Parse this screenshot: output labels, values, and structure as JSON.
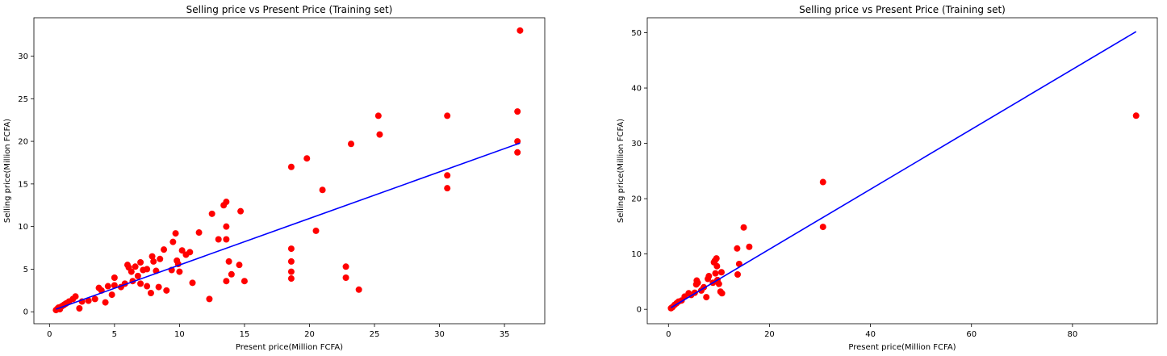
{
  "chart_data": [
    {
      "type": "scatter",
      "title": "Selling price vs Present Price (Training set)",
      "xlabel": "Present price(Million FCFA)",
      "ylabel": "Selling price(Million FCFA)",
      "xlim": [
        -1.2,
        38.1
      ],
      "ylim": [
        -1.4,
        34.5
      ],
      "xticks": [
        0,
        5,
        10,
        15,
        20,
        25,
        30,
        35
      ],
      "yticks": [
        0,
        5,
        10,
        15,
        20,
        25,
        30
      ],
      "grid": false,
      "point_color": "#ff0000",
      "line_color": "#0000ff",
      "series": [
        {
          "type": "scatter",
          "points": [
            [
              0.5,
              0.2
            ],
            [
              0.6,
              0.35
            ],
            [
              0.7,
              0.5
            ],
            [
              0.8,
              0.3
            ],
            [
              0.9,
              0.6
            ],
            [
              1.0,
              0.7
            ],
            [
              1.1,
              0.8
            ],
            [
              1.2,
              0.9
            ],
            [
              1.3,
              1.0
            ],
            [
              1.5,
              1.2
            ],
            [
              1.8,
              1.5
            ],
            [
              2.0,
              1.8
            ],
            [
              2.3,
              0.4
            ],
            [
              2.5,
              1.2
            ],
            [
              3.0,
              1.3
            ],
            [
              3.5,
              1.5
            ],
            [
              3.8,
              2.8
            ],
            [
              4.0,
              2.5
            ],
            [
              4.3,
              1.1
            ],
            [
              4.5,
              3.0
            ],
            [
              4.8,
              2.0
            ],
            [
              5.0,
              3.1
            ],
            [
              5.0,
              4.0
            ],
            [
              5.5,
              2.9
            ],
            [
              5.8,
              3.3
            ],
            [
              6.0,
              5.5
            ],
            [
              6.1,
              5.2
            ],
            [
              6.3,
              4.7
            ],
            [
              6.4,
              3.6
            ],
            [
              6.6,
              5.3
            ],
            [
              6.8,
              4.2
            ],
            [
              7.0,
              3.3
            ],
            [
              7.0,
              5.8
            ],
            [
              7.2,
              4.9
            ],
            [
              7.5,
              5.0
            ],
            [
              7.5,
              3.0
            ],
            [
              7.8,
              2.2
            ],
            [
              7.9,
              6.5
            ],
            [
              8.0,
              5.9
            ],
            [
              8.2,
              4.8
            ],
            [
              8.4,
              2.9
            ],
            [
              8.5,
              6.2
            ],
            [
              8.8,
              7.3
            ],
            [
              9.0,
              2.5
            ],
            [
              9.4,
              4.9
            ],
            [
              9.5,
              8.2
            ],
            [
              9.7,
              9.2
            ],
            [
              9.8,
              6.0
            ],
            [
              9.9,
              5.6
            ],
            [
              10.0,
              4.7
            ],
            [
              10.2,
              7.2
            ],
            [
              10.5,
              6.7
            ],
            [
              10.8,
              7.0
            ],
            [
              11.0,
              3.4
            ],
            [
              11.5,
              9.3
            ],
            [
              12.3,
              1.5
            ],
            [
              12.5,
              11.5
            ],
            [
              13.0,
              8.5
            ],
            [
              13.4,
              12.5
            ],
            [
              13.6,
              12.9
            ],
            [
              13.6,
              10.0
            ],
            [
              13.6,
              8.5
            ],
            [
              13.6,
              3.6
            ],
            [
              13.8,
              5.9
            ],
            [
              14.0,
              4.4
            ],
            [
              14.6,
              5.5
            ],
            [
              14.7,
              11.8
            ],
            [
              15.0,
              3.6
            ],
            [
              18.6,
              17.0
            ],
            [
              18.6,
              7.4
            ],
            [
              18.6,
              5.9
            ],
            [
              18.6,
              4.7
            ],
            [
              18.6,
              3.9
            ],
            [
              19.8,
              18.0
            ],
            [
              20.5,
              9.5
            ],
            [
              21.0,
              14.3
            ],
            [
              22.8,
              5.3
            ],
            [
              22.8,
              4.0
            ],
            [
              23.2,
              19.7
            ],
            [
              23.8,
              2.6
            ],
            [
              25.3,
              23.0
            ],
            [
              25.4,
              20.8
            ],
            [
              30.6,
              23.0
            ],
            [
              30.6,
              16.0
            ],
            [
              30.6,
              14.5
            ],
            [
              36.0,
              23.5
            ],
            [
              36.0,
              20.0
            ],
            [
              36.0,
              18.7
            ],
            [
              36.2,
              33.0
            ]
          ]
        },
        {
          "type": "line",
          "points": [
            [
              0.5,
              0.3
            ],
            [
              36.2,
              19.8
            ]
          ]
        }
      ]
    },
    {
      "type": "scatter",
      "title": "Selling price vs Present Price (Training set)",
      "xlabel": "Present price(Million FCFA)",
      "ylabel": "Selling price(Million FCFA)",
      "xlim": [
        -4.2,
        96.8
      ],
      "ylim": [
        -2.6,
        52.7
      ],
      "xticks": [
        0,
        20,
        40,
        60,
        80
      ],
      "yticks": [
        0,
        10,
        20,
        30,
        40,
        50
      ],
      "grid": false,
      "point_color": "#ff0000",
      "line_color": "#0000ff",
      "series": [
        {
          "type": "scatter",
          "points": [
            [
              0.5,
              0.2
            ],
            [
              0.8,
              0.4
            ],
            [
              1.2,
              0.8
            ],
            [
              1.6,
              1.1
            ],
            [
              2.0,
              1.4
            ],
            [
              2.6,
              1.6
            ],
            [
              3.2,
              2.3
            ],
            [
              4.0,
              2.9
            ],
            [
              4.5,
              2.6
            ],
            [
              5.2,
              3.0
            ],
            [
              5.5,
              4.5
            ],
            [
              5.6,
              5.2
            ],
            [
              5.8,
              4.8
            ],
            [
              6.5,
              3.4
            ],
            [
              7.0,
              4.0
            ],
            [
              7.5,
              2.2
            ],
            [
              7.8,
              5.5
            ],
            [
              8.0,
              6.0
            ],
            [
              8.8,
              4.8
            ],
            [
              9.0,
              8.5
            ],
            [
              9.2,
              8.8
            ],
            [
              9.3,
              6.5
            ],
            [
              9.5,
              9.2
            ],
            [
              9.6,
              7.8
            ],
            [
              9.7,
              5.3
            ],
            [
              10.0,
              4.6
            ],
            [
              10.3,
              3.2
            ],
            [
              10.5,
              6.7
            ],
            [
              10.6,
              2.9
            ],
            [
              13.6,
              11.0
            ],
            [
              13.7,
              6.3
            ],
            [
              14.0,
              8.2
            ],
            [
              14.9,
              14.8
            ],
            [
              16.0,
              11.3
            ],
            [
              30.6,
              23.0
            ],
            [
              30.6,
              14.9
            ],
            [
              92.6,
              35.0
            ]
          ]
        },
        {
          "type": "line",
          "points": [
            [
              0.5,
              0.3
            ],
            [
              92.6,
              50.2
            ]
          ]
        }
      ]
    }
  ]
}
